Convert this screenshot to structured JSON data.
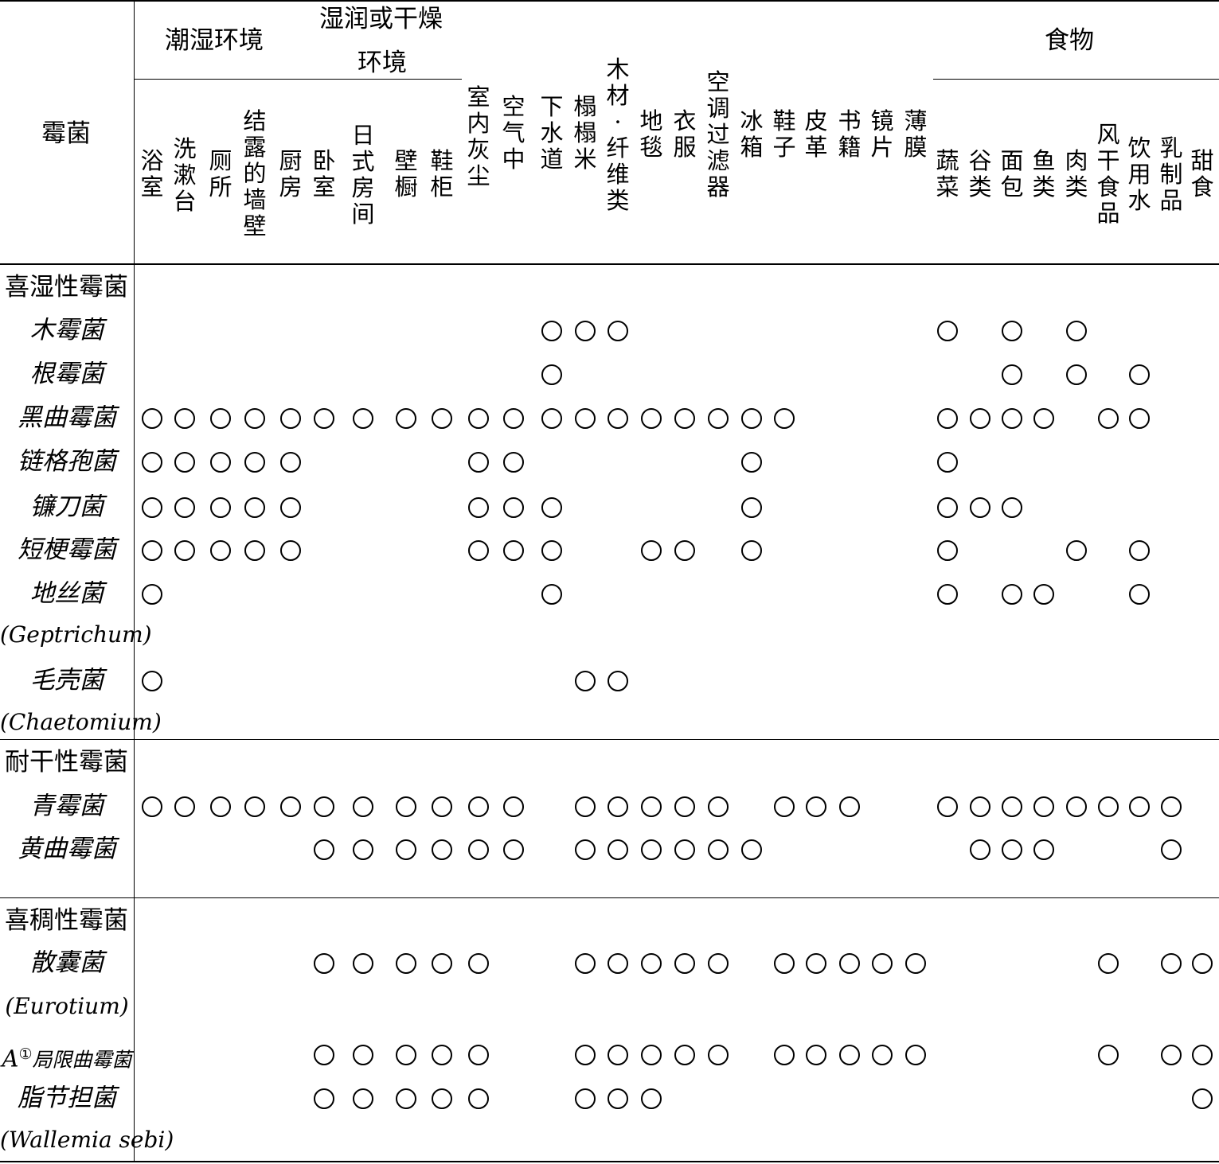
{
  "header": {
    "corner": "霉菌",
    "groups": {
      "humid": "潮湿环境",
      "humid_or_dry_line1": "湿润或干燥",
      "humid_or_dry_line2": "环境",
      "food": "食物"
    },
    "columns": [
      "浴室",
      "洗漱台",
      "厕所",
      "结露的墙壁",
      "厨房",
      "卧室",
      "日式房间",
      "壁橱",
      "鞋柜",
      "室内灰尘",
      "空气中",
      "下水道",
      "榻榻米",
      "木材·纤维类",
      "地毯",
      "衣服",
      "空调过滤器",
      "冰箱",
      "鞋子",
      "皮革",
      "书籍",
      "镜片",
      "薄膜",
      "蔬菜",
      "谷类",
      "面包",
      "鱼类",
      "肉类",
      "风干食品",
      "饮用水",
      "乳制品",
      "甜食"
    ]
  },
  "sections": [
    {
      "title": "喜湿性霉菌",
      "rows": [
        {
          "name": "木霉菌",
          "marked": [
            11,
            12,
            13,
            23,
            25,
            27
          ]
        },
        {
          "name": "根霉菌",
          "marked": [
            11,
            25,
            27,
            29
          ]
        },
        {
          "name": "黑曲霉菌",
          "marked": [
            0,
            1,
            2,
            3,
            4,
            5,
            6,
            7,
            8,
            9,
            10,
            11,
            12,
            13,
            14,
            15,
            16,
            17,
            18,
            23,
            24,
            25,
            26,
            28,
            29
          ]
        },
        {
          "name": "链格孢菌",
          "marked": [
            0,
            1,
            2,
            3,
            4,
            9,
            10,
            17,
            23
          ]
        },
        {
          "name": "镰刀菌",
          "marked": [
            0,
            1,
            2,
            3,
            4,
            9,
            10,
            11,
            17,
            23,
            24,
            25
          ]
        },
        {
          "name": "短梗霉菌",
          "marked": [
            0,
            1,
            2,
            3,
            4,
            9,
            10,
            11,
            14,
            15,
            17,
            23,
            27,
            29
          ]
        },
        {
          "name": "地丝菌",
          "name2": "(Geptrichum)",
          "marked": [
            0,
            11,
            23,
            25,
            26,
            29
          ]
        },
        {
          "name": "毛壳菌",
          "name2": "(Chaetomium)",
          "marked": [
            0,
            12,
            13
          ]
        }
      ]
    },
    {
      "title": "耐干性霉菌",
      "rows": [
        {
          "name": "青霉菌",
          "marked": [
            0,
            1,
            2,
            3,
            4,
            5,
            6,
            7,
            8,
            9,
            10,
            12,
            13,
            14,
            15,
            16,
            18,
            19,
            20,
            23,
            24,
            25,
            26,
            27,
            28,
            29,
            30
          ]
        },
        {
          "name": "黄曲霉菌",
          "marked": [
            5,
            6,
            7,
            8,
            9,
            10,
            12,
            13,
            14,
            15,
            16,
            17,
            24,
            25,
            26,
            30
          ]
        }
      ]
    },
    {
      "title": "喜稠性霉菌",
      "rows": [
        {
          "name": "散囊菌",
          "name2": "(Eurotium)",
          "marked": [
            5,
            6,
            7,
            8,
            9,
            12,
            13,
            14,
            15,
            16,
            18,
            19,
            20,
            21,
            22,
            28,
            30,
            31
          ]
        },
        {
          "name_prefix": "A",
          "name_sup": "①",
          "name": "局限曲霉菌",
          "marked": [
            5,
            6,
            7,
            8,
            9,
            12,
            13,
            14,
            15,
            16,
            18,
            19,
            20,
            21,
            22,
            28,
            30,
            31
          ]
        },
        {
          "name": "脂节担菌",
          "name2": "(Wallemia sebi)",
          "marked": [
            5,
            6,
            7,
            8,
            9,
            12,
            13,
            14,
            31
          ]
        }
      ]
    }
  ]
}
